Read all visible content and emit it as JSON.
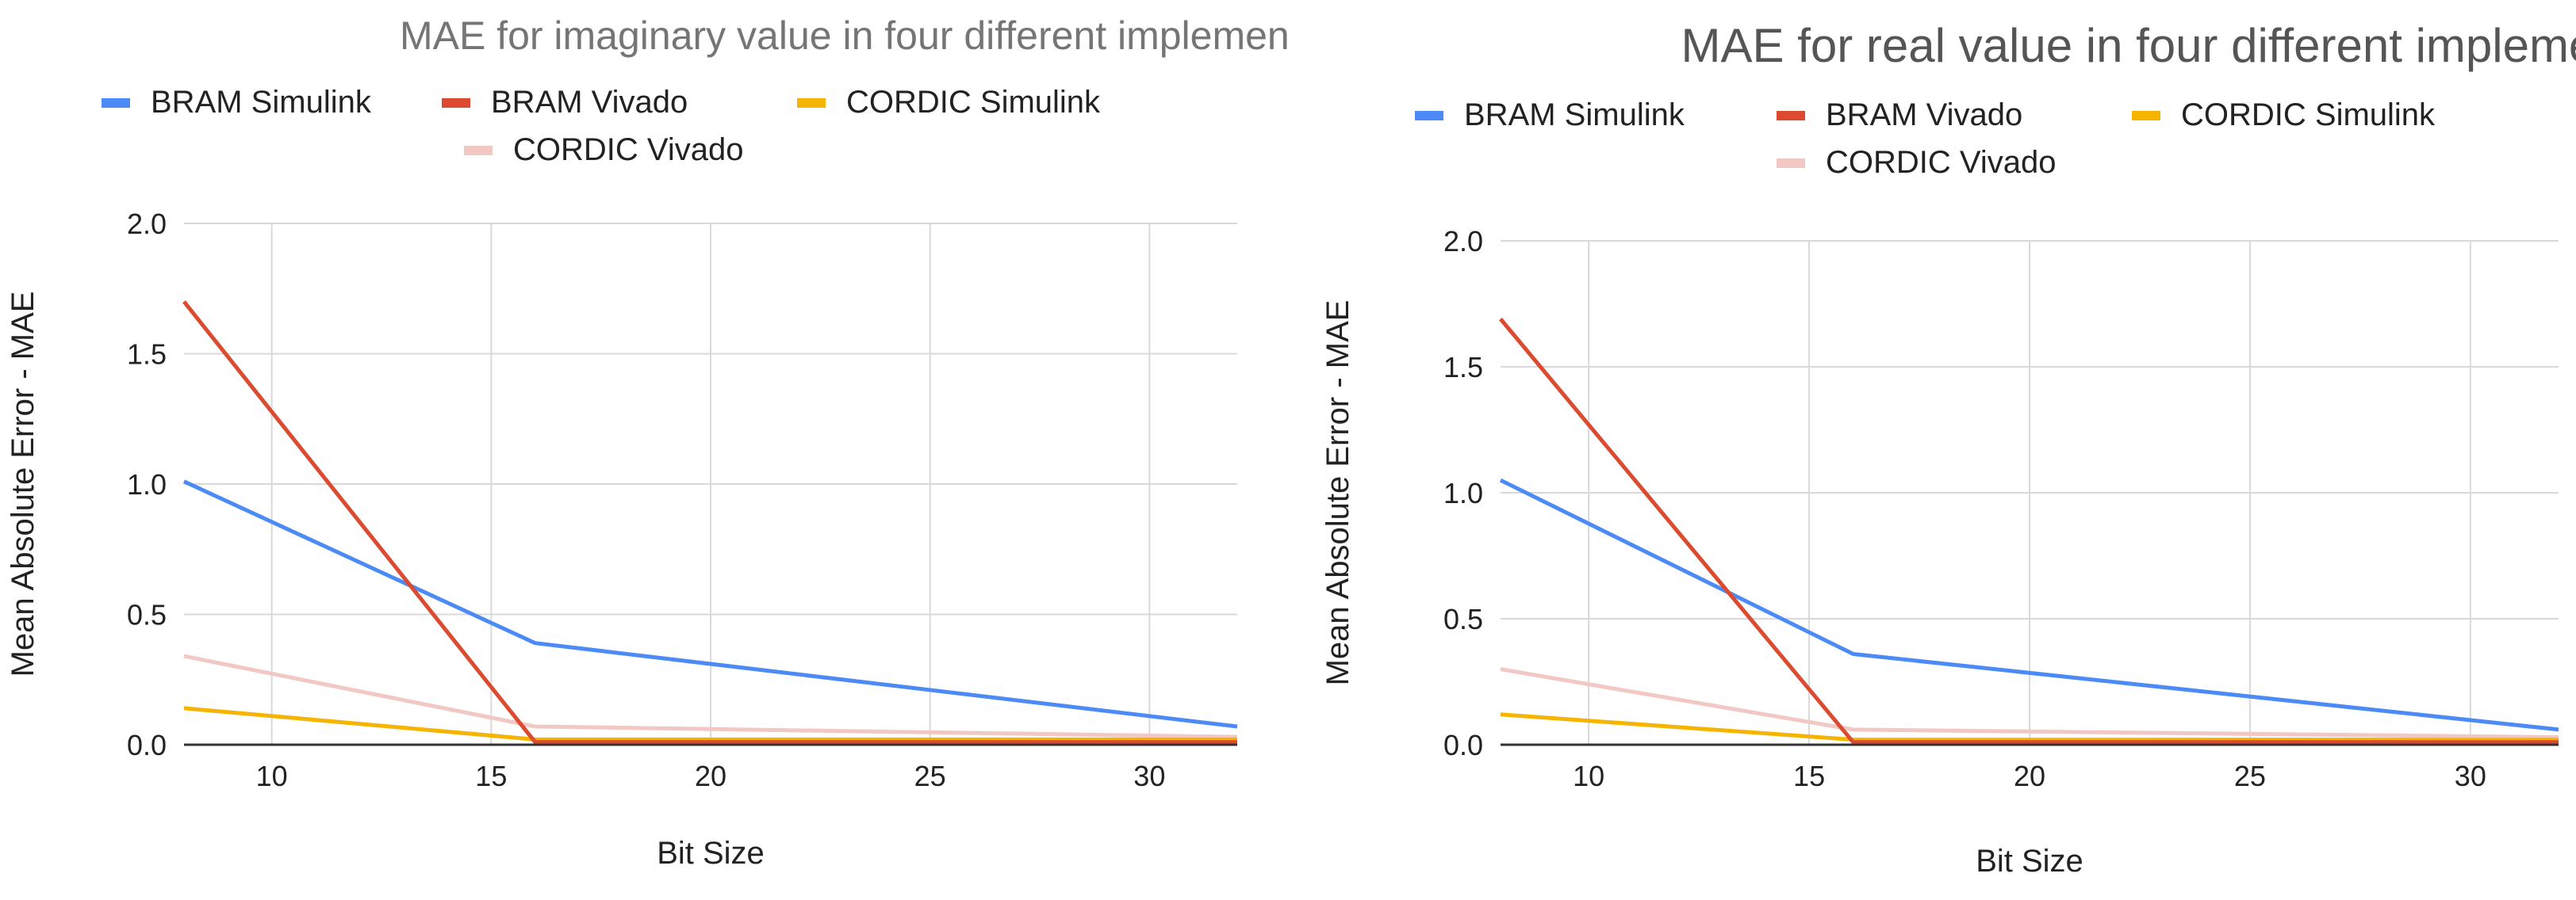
{
  "chart_data": [
    {
      "type": "line",
      "title": "MAE for imaginary value in four different implementation",
      "xlabel": "Bit Size",
      "ylabel": "Mean Absolute Error - MAE",
      "xlim": [
        8,
        32
      ],
      "ylim": [
        0,
        2.0
      ],
      "x_ticks": [
        10,
        15,
        20,
        25,
        30
      ],
      "y_ticks": [
        0.0,
        0.5,
        1.0,
        1.5,
        2.0
      ],
      "y_tick_labels": [
        "0.0",
        "0.5",
        "1.0",
        "1.5",
        "2.0"
      ],
      "grid": true,
      "legend_position": "top",
      "series": [
        {
          "name": "BRAM Simulink",
          "color": "#4c8bf5",
          "x": [
            8,
            16,
            32
          ],
          "values": [
            1.01,
            0.39,
            0.07
          ]
        },
        {
          "name": "BRAM Vivado",
          "color": "#dc4a30",
          "x": [
            8,
            16,
            32
          ],
          "values": [
            1.7,
            0.01,
            0.01
          ]
        },
        {
          "name": "CORDIC Simulink",
          "color": "#f5b400",
          "x": [
            8,
            16,
            32
          ],
          "values": [
            0.14,
            0.02,
            0.02
          ]
        },
        {
          "name": "CORDIC Vivado",
          "color": "#f1c8c4",
          "x": [
            8,
            16,
            32
          ],
          "values": [
            0.34,
            0.07,
            0.03
          ]
        }
      ]
    },
    {
      "type": "line",
      "title": "MAE for real value in four different implementation",
      "xlabel": "Bit Size",
      "ylabel": "Mean Absolute Error - MAE",
      "xlim": [
        8,
        32
      ],
      "ylim": [
        0,
        2.0
      ],
      "x_ticks": [
        10,
        15,
        20,
        25,
        30
      ],
      "y_ticks": [
        0.0,
        0.5,
        1.0,
        1.5,
        2.0
      ],
      "y_tick_labels": [
        "0.0",
        "0.5",
        "1.0",
        "1.5",
        "2.0"
      ],
      "grid": true,
      "legend_position": "top",
      "series": [
        {
          "name": "BRAM Simulink",
          "color": "#4c8bf5",
          "x": [
            8,
            16,
            32
          ],
          "values": [
            1.05,
            0.36,
            0.06
          ]
        },
        {
          "name": "BRAM Vivado",
          "color": "#dc4a30",
          "x": [
            8,
            16,
            32
          ],
          "values": [
            1.69,
            0.01,
            0.01
          ]
        },
        {
          "name": "CORDIC Simulink",
          "color": "#f5b400",
          "x": [
            8,
            16,
            32
          ],
          "values": [
            0.12,
            0.02,
            0.02
          ]
        },
        {
          "name": "CORDIC Vivado",
          "color": "#f1c8c4",
          "x": [
            8,
            16,
            32
          ],
          "values": [
            0.3,
            0.06,
            0.03
          ]
        }
      ]
    }
  ]
}
